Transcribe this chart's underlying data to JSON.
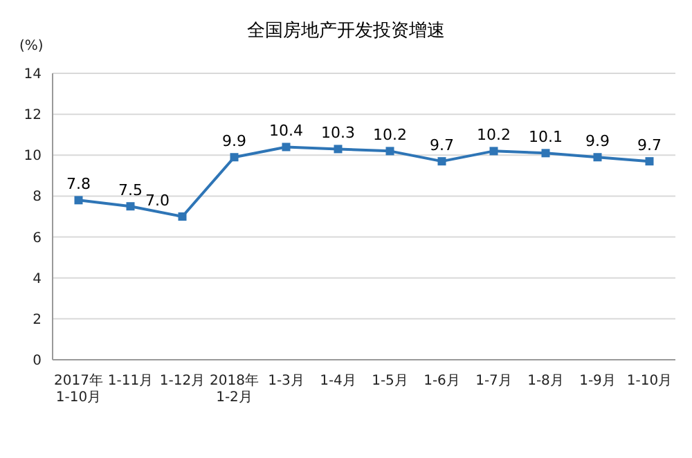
{
  "chart_data": {
    "type": "line",
    "title": "全国房地产开发投资增速",
    "ylabel": "(%)",
    "categories": [
      "2017年\n1-10月",
      "1-11月",
      "1-12月",
      "2018年\n1-2月",
      "1-3月",
      "1-4月",
      "1-5月",
      "1-6月",
      "1-7月",
      "1-8月",
      "1-9月",
      "1-10月"
    ],
    "series": [
      {
        "color": "#2e75b6",
        "values": [
          7.8,
          7.5,
          7.0,
          9.9,
          10.4,
          10.3,
          10.2,
          9.7,
          10.2,
          10.1,
          9.9,
          9.7
        ],
        "value_labels": [
          "7.8",
          "7.5",
          "7.0",
          "9.9",
          "10.4",
          "10.3",
          "10.2",
          "9.7",
          "10.2",
          "10.1",
          "9.9",
          "9.7"
        ]
      }
    ],
    "ylim": [
      0,
      14
    ],
    "yticks": [
      0,
      2,
      4,
      6,
      8,
      10,
      12,
      14
    ],
    "grid": "y",
    "marker": "square",
    "line_style": "solid"
  }
}
